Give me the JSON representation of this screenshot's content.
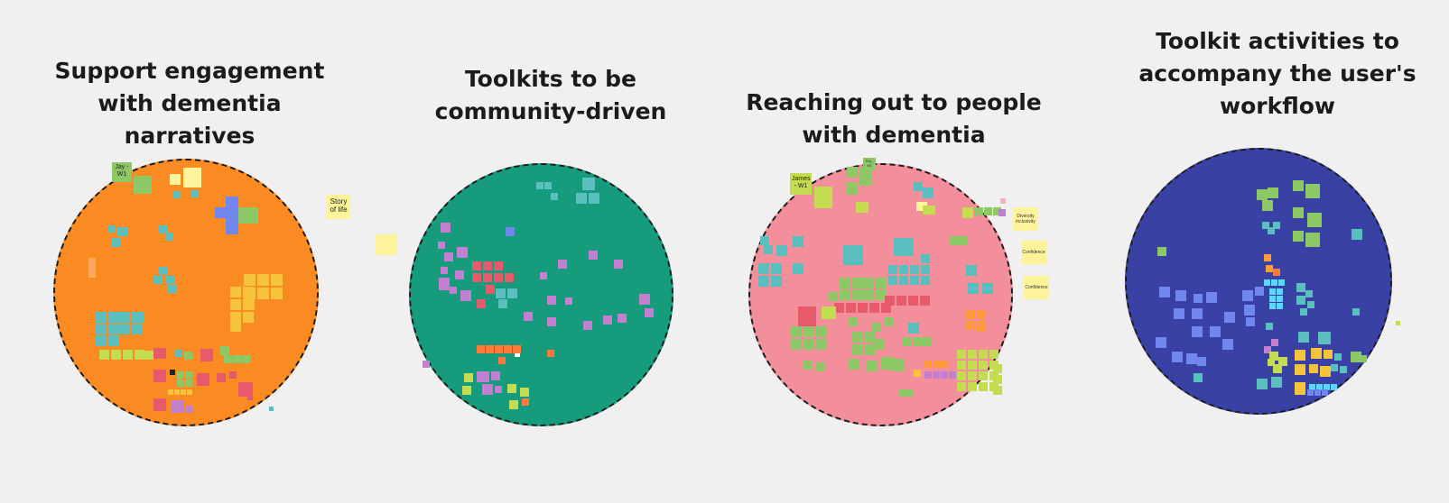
{
  "board": {
    "background": "#f0f0f0",
    "clusters": [
      {
        "title": "Support engagement\nwith dementia\nnarratives",
        "circle_color": "#fa8a22"
      },
      {
        "title": "Toolkits to be\ncommunity-driven",
        "circle_color": "#169b7c"
      },
      {
        "title": "Reaching out to people\nwith dementia",
        "circle_color": "#f38f9a"
      },
      {
        "title": "Toolkit activities to\naccompany the user's\nworkflow",
        "circle_color": "#3a41a4"
      }
    ],
    "notes": {
      "jay_w1": "Jay -\nW1",
      "story_of_life": "Story\nof life",
      "james_w1": "James\n- W1",
      "raj_w1": "Raj -\nW1",
      "diversity_inclusivity": "Diversity\ninclusivity",
      "confidence_1": "Confidence",
      "confidence_2": "Confidence"
    },
    "note_colors": {
      "yellow": "#fdf39a",
      "green": "#8cc866",
      "teal": "#5bbfbf",
      "blue": "#6f87ef",
      "purple": "#c27fd0",
      "red": "#e75a6b",
      "orange": "#ff9a3c",
      "lime": "#c4dc4f",
      "pink": "#f5b2c1"
    }
  }
}
